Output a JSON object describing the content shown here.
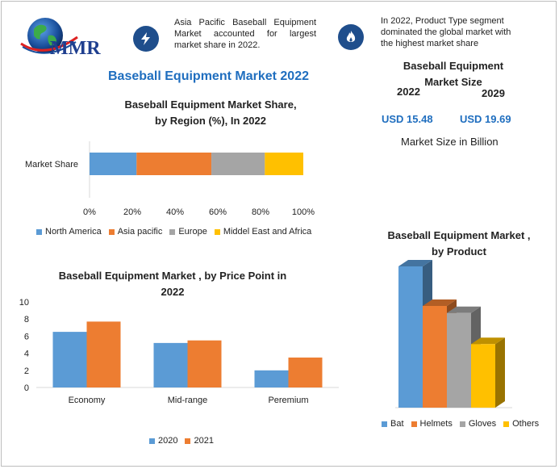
{
  "header": {
    "logo_text": "MMR",
    "title": "Baseball Equipment Market 2022",
    "note_left": "Asia Pacific Baseball Equipment Market accounted for largest market share in 2022.",
    "note_right": "In 2022, Product Type segment dominated the global market with the highest market share",
    "icons": [
      "lightning-icon",
      "flame-icon"
    ]
  },
  "market_size": {
    "title": "Baseball Equipment Market Size",
    "year_left": "2022",
    "year_right": "2029",
    "value_left": "USD 15.48",
    "value_right": "USD 19.69",
    "unit": "Market Size in Billion",
    "value_color": "#1f6ebf"
  },
  "chart_data": [
    {
      "type": "bar",
      "orientation": "horizontal-stacked",
      "title": "Baseball Equipment Market Share, by Region (%), In 2022",
      "title_line1": "Baseball Equipment Market Share,",
      "title_line2": "by Region (%), In 2022",
      "categories": [
        "Market Share"
      ],
      "xlim": [
        0,
        100
      ],
      "ticks": [
        "0%",
        "20%",
        "40%",
        "60%",
        "80%",
        "100%"
      ],
      "legend_position": "bottom",
      "series": [
        {
          "name": "North America",
          "values": [
            22
          ],
          "color": "#5b9bd5"
        },
        {
          "name": "Asia pacific",
          "values": [
            35
          ],
          "color": "#ed7d31"
        },
        {
          "name": "Europe",
          "values": [
            25
          ],
          "color": "#a5a5a5"
        },
        {
          "name": "Middel East and Africa",
          "values": [
            18
          ],
          "color": "#ffc000"
        }
      ]
    },
    {
      "type": "bar",
      "title": "Baseball Equipment Market , by Price Point in 2022",
      "title_line1": "Baseball Equipment Market , by Price Point in",
      "title_line2": "2022",
      "categories": [
        "Economy",
        "Mid-range",
        "Peremium"
      ],
      "ylim": [
        0,
        10
      ],
      "yticks": [
        "0",
        "2",
        "4",
        "6",
        "8",
        "10"
      ],
      "legend_position": "bottom",
      "series": [
        {
          "name": "2020",
          "values": [
            6.5,
            5.2,
            2.0
          ],
          "color": "#5b9bd5"
        },
        {
          "name": "2021",
          "values": [
            7.7,
            5.5,
            3.5
          ],
          "color": "#ed7d31"
        }
      ]
    },
    {
      "type": "bar",
      "style": "3d",
      "title": "Baseball Equipment Market , by Product",
      "title_line1": "Baseball Equipment Market ,",
      "title_line2": "by Product",
      "legend_position": "bottom",
      "series": [
        {
          "name": "Bat",
          "values": [
            100
          ],
          "color": "#5b9bd5"
        },
        {
          "name": "Helmets",
          "values": [
            72
          ],
          "color": "#ed7d31"
        },
        {
          "name": "Gloves",
          "values": [
            67
          ],
          "color": "#a5a5a5"
        },
        {
          "name": "Others",
          "values": [
            45
          ],
          "color": "#ffc000"
        }
      ]
    }
  ]
}
